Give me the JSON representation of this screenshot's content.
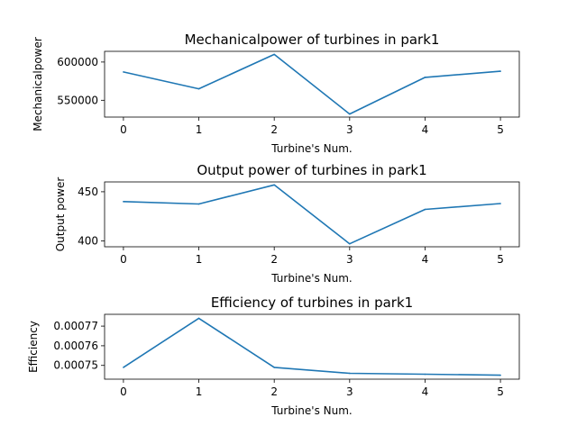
{
  "chart_data": [
    {
      "type": "line",
      "title": "Mechanicalpower of turbines in park1",
      "xlabel": "Turbine's Num.",
      "ylabel": "Mechanicalpower",
      "x": [
        0,
        1,
        2,
        3,
        4,
        5
      ],
      "y": [
        587000,
        565000,
        610000,
        532000,
        580000,
        588000
      ],
      "xticks": [
        "0",
        "1",
        "2",
        "3",
        "4",
        "5"
      ],
      "yticks": [
        550000,
        600000
      ],
      "ytick_labels": [
        "550000",
        "600000"
      ],
      "xlim": [
        -0.25,
        5.25
      ],
      "ylim": [
        528000,
        614000
      ],
      "grid": false,
      "line_color": "#1f77b4"
    },
    {
      "type": "line",
      "title": "Output power of turbines in park1",
      "xlabel": "Turbine's Num.",
      "ylabel": "Output power",
      "x": [
        0,
        1,
        2,
        3,
        4,
        5
      ],
      "y": [
        440,
        437.5,
        457,
        397,
        432,
        438
      ],
      "xticks": [
        "0",
        "1",
        "2",
        "3",
        "4",
        "5"
      ],
      "yticks": [
        400,
        450
      ],
      "ytick_labels": [
        "400",
        "450"
      ],
      "xlim": [
        -0.25,
        5.25
      ],
      "ylim": [
        394,
        460
      ],
      "grid": false,
      "line_color": "#1f77b4"
    },
    {
      "type": "line",
      "title": "Efficiency of turbines in park1",
      "xlabel": "Turbine's Num.",
      "ylabel": "Efficiency",
      "x": [
        0,
        1,
        2,
        3,
        4,
        5
      ],
      "y": [
        0.000749,
        0.000774,
        0.000749,
        0.000746,
        0.0007455,
        0.000745
      ],
      "xticks": [
        "0",
        "1",
        "2",
        "3",
        "4",
        "5"
      ],
      "yticks": [
        0.00075,
        0.00076,
        0.00077
      ],
      "ytick_labels": [
        "0.00075",
        "0.00076",
        "0.00077"
      ],
      "xlim": [
        -0.25,
        5.25
      ],
      "ylim": [
        0.000743,
        0.000776
      ],
      "grid": false,
      "line_color": "#1f77b4"
    }
  ]
}
